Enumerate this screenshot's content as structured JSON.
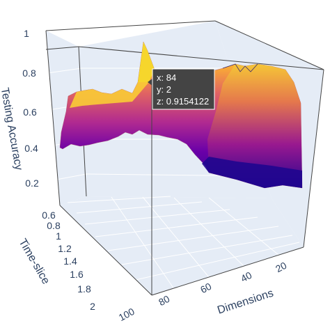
{
  "chart_data": {
    "type": "surface",
    "title": "",
    "axes": {
      "x": {
        "label": "Dimensions",
        "ticks": [
          "100",
          "80",
          "60",
          "40",
          "20"
        ]
      },
      "y": {
        "label": "Time-slice",
        "ticks": [
          "0.6",
          "0.8",
          "1",
          "1.2",
          "1.4",
          "1.6",
          "1.8",
          "2"
        ]
      },
      "z": {
        "label": "Testing Accuracy",
        "ticks": [
          "0.2",
          "0.4",
          "0.6",
          "0.8",
          "1"
        ],
        "range": [
          0.2,
          1
        ]
      }
    },
    "colorscale": [
      "#0d0887",
      "#46039f",
      "#7201a8",
      "#9c179e",
      "#bd3786",
      "#d8576b",
      "#ed7953",
      "#fb9f3a",
      "#fdca26",
      "#f0f921"
    ],
    "surface_profile": {
      "dimensions": [
        100,
        95,
        90,
        85,
        84,
        80,
        75,
        70,
        65,
        60,
        55,
        50,
        45,
        40,
        35,
        30,
        25,
        20,
        15,
        10
      ],
      "front_edge_accuracy": [
        0.39,
        0.41,
        0.42,
        0.43,
        0.44,
        0.41,
        0.4,
        0.42,
        0.43,
        0.42,
        0.4,
        0.36,
        0.31,
        0.27,
        0.24,
        0.22,
        0.21,
        0.2,
        0.2,
        0.2
      ],
      "back_edge_accuracy": [
        0.63,
        0.7,
        0.73,
        0.8,
        0.92,
        0.83,
        0.78,
        0.76,
        0.8,
        0.82,
        0.84,
        0.86,
        0.87,
        0.86,
        0.84,
        0.82,
        0.82,
        0.8,
        0.8,
        0.79
      ]
    },
    "hover": {
      "x": "84",
      "y": "2",
      "z": "0.9154122"
    }
  }
}
